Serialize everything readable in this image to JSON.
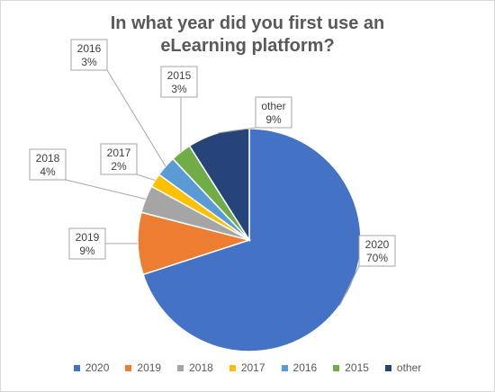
{
  "chart_data": {
    "type": "pie",
    "title": "In what year did you first use an eLearning platform?",
    "slices": [
      {
        "label": "2020",
        "value": 70,
        "display": "70%",
        "color": "#4472C4"
      },
      {
        "label": "2019",
        "value": 9,
        "display": "9%",
        "color": "#ED7D31"
      },
      {
        "label": "2018",
        "value": 4,
        "display": "4%",
        "color": "#A5A5A5"
      },
      {
        "label": "2017",
        "value": 2,
        "display": "2%",
        "color": "#FFC000"
      },
      {
        "label": "2016",
        "value": 3,
        "display": "3%",
        "color": "#5B9BD5"
      },
      {
        "label": "2015",
        "value": 3,
        "display": "3%",
        "color": "#70AD47"
      },
      {
        "label": "other",
        "value": 9,
        "display": "9%",
        "color": "#264478"
      }
    ],
    "legend_position": "bottom"
  }
}
